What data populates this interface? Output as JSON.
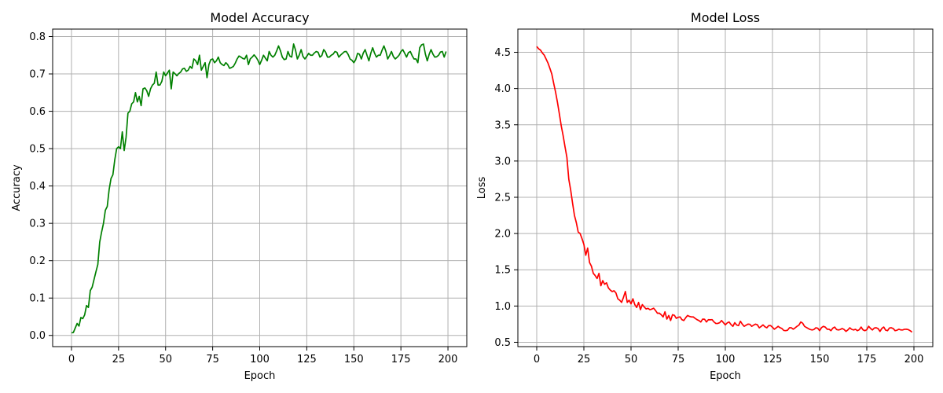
{
  "figure": {
    "background": "#ffffff",
    "grid_color": "#b0b0b0"
  },
  "chart_data": [
    {
      "type": "line",
      "title": "Model Accuracy",
      "xlabel": "Epoch",
      "ylabel": "Accuracy",
      "xlim": [
        -10,
        210
      ],
      "ylim": [
        -0.03,
        0.82
      ],
      "xticks": [
        0,
        25,
        50,
        75,
        100,
        125,
        150,
        175,
        200
      ],
      "yticks": [
        0.0,
        0.1,
        0.2,
        0.3,
        0.4,
        0.5,
        0.6,
        0.7,
        0.8
      ],
      "ytick_labels": [
        "0.0",
        "0.1",
        "0.2",
        "0.3",
        "0.4",
        "0.5",
        "0.6",
        "0.7",
        "0.8"
      ],
      "grid": true,
      "color": "#008000",
      "anchors": [
        [
          0,
          0.007
        ],
        [
          2,
          0.02
        ],
        [
          3,
          0.032
        ],
        [
          4,
          0.025
        ],
        [
          5,
          0.048
        ],
        [
          6,
          0.045
        ],
        [
          7,
          0.055
        ],
        [
          8,
          0.08
        ],
        [
          9,
          0.075
        ],
        [
          10,
          0.12
        ],
        [
          12,
          0.15
        ],
        [
          14,
          0.19
        ],
        [
          15,
          0.25
        ],
        [
          17,
          0.3
        ],
        [
          18,
          0.335
        ],
        [
          19,
          0.345
        ],
        [
          20,
          0.39
        ],
        [
          21,
          0.42
        ],
        [
          22,
          0.43
        ],
        [
          23,
          0.47
        ],
        [
          24,
          0.5
        ],
        [
          25,
          0.505
        ],
        [
          26,
          0.5
        ],
        [
          27,
          0.545
        ],
        [
          28,
          0.495
        ],
        [
          29,
          0.53
        ],
        [
          30,
          0.595
        ],
        [
          31,
          0.6
        ],
        [
          32,
          0.62
        ],
        [
          33,
          0.625
        ],
        [
          34,
          0.65
        ],
        [
          35,
          0.625
        ],
        [
          36,
          0.64
        ],
        [
          37,
          0.615
        ],
        [
          38,
          0.66
        ],
        [
          40,
          0.655
        ],
        [
          41,
          0.64
        ],
        [
          42,
          0.66
        ],
        [
          43,
          0.67
        ],
        [
          44,
          0.675
        ],
        [
          45,
          0.705
        ],
        [
          46,
          0.67
        ],
        [
          48,
          0.68
        ],
        [
          49,
          0.705
        ],
        [
          50,
          0.695
        ],
        [
          52,
          0.71
        ],
        [
          53,
          0.66
        ],
        [
          54,
          0.705
        ],
        [
          56,
          0.695
        ],
        [
          58,
          0.705
        ],
        [
          60,
          0.715
        ],
        [
          62,
          0.71
        ],
        [
          63,
          0.72
        ],
        [
          64,
          0.715
        ],
        [
          65,
          0.74
        ],
        [
          67,
          0.725
        ],
        [
          68,
          0.75
        ],
        [
          69,
          0.71
        ],
        [
          70,
          0.72
        ],
        [
          71,
          0.73
        ],
        [
          72,
          0.69
        ],
        [
          73,
          0.725
        ],
        [
          75,
          0.74
        ],
        [
          76,
          0.73
        ],
        [
          77,
          0.735
        ],
        [
          78,
          0.745
        ],
        [
          79,
          0.73
        ],
        [
          80,
          0.725
        ],
        [
          82,
          0.73
        ],
        [
          84,
          0.715
        ],
        [
          86,
          0.72
        ],
        [
          88,
          0.74
        ],
        [
          90,
          0.745
        ],
        [
          92,
          0.74
        ],
        [
          93,
          0.75
        ],
        [
          94,
          0.725
        ],
        [
          96,
          0.745
        ],
        [
          98,
          0.745
        ],
        [
          100,
          0.725
        ],
        [
          102,
          0.75
        ],
        [
          104,
          0.735
        ],
        [
          105,
          0.76
        ],
        [
          107,
          0.745
        ],
        [
          108,
          0.75
        ],
        [
          110,
          0.775
        ],
        [
          112,
          0.745
        ],
        [
          114,
          0.74
        ],
        [
          115,
          0.76
        ],
        [
          117,
          0.745
        ],
        [
          118,
          0.78
        ],
        [
          120,
          0.74
        ],
        [
          122,
          0.765
        ],
        [
          124,
          0.74
        ],
        [
          126,
          0.755
        ],
        [
          128,
          0.75
        ],
        [
          130,
          0.76
        ],
        [
          132,
          0.745
        ],
        [
          134,
          0.765
        ],
        [
          136,
          0.745
        ],
        [
          138,
          0.75
        ],
        [
          140,
          0.76
        ],
        [
          142,
          0.745
        ],
        [
          144,
          0.755
        ],
        [
          146,
          0.76
        ],
        [
          148,
          0.74
        ],
        [
          150,
          0.73
        ],
        [
          152,
          0.755
        ],
        [
          154,
          0.74
        ],
        [
          156,
          0.765
        ],
        [
          158,
          0.735
        ],
        [
          160,
          0.77
        ],
        [
          162,
          0.745
        ],
        [
          164,
          0.75
        ],
        [
          166,
          0.775
        ],
        [
          168,
          0.74
        ],
        [
          170,
          0.76
        ],
        [
          172,
          0.74
        ],
        [
          174,
          0.75
        ],
        [
          176,
          0.765
        ],
        [
          178,
          0.745
        ],
        [
          180,
          0.76
        ],
        [
          182,
          0.74
        ],
        [
          184,
          0.73
        ],
        [
          185,
          0.77
        ],
        [
          187,
          0.78
        ],
        [
          189,
          0.735
        ],
        [
          191,
          0.765
        ],
        [
          193,
          0.745
        ],
        [
          195,
          0.75
        ],
        [
          197,
          0.76
        ],
        [
          198,
          0.745
        ],
        [
          199,
          0.76
        ]
      ]
    },
    {
      "type": "line",
      "title": "Model Loss",
      "xlabel": "Epoch",
      "ylabel": "Loss",
      "xlim": [
        -10,
        210
      ],
      "ylim": [
        0.44,
        4.82
      ],
      "xticks": [
        0,
        25,
        50,
        75,
        100,
        125,
        150,
        175,
        200
      ],
      "yticks": [
        0.5,
        1.0,
        1.5,
        2.0,
        2.5,
        3.0,
        3.5,
        4.0,
        4.5
      ],
      "ytick_labels": [
        "0.5",
        "1.0",
        "1.5",
        "2.0",
        "2.5",
        "3.0",
        "3.5",
        "4.0",
        "4.5"
      ],
      "grid": true,
      "color": "#ff0000",
      "anchors": [
        [
          0,
          4.58
        ],
        [
          2,
          4.53
        ],
        [
          3,
          4.49
        ],
        [
          4,
          4.46
        ],
        [
          6,
          4.35
        ],
        [
          8,
          4.2
        ],
        [
          10,
          3.95
        ],
        [
          12,
          3.65
        ],
        [
          14,
          3.35
        ],
        [
          16,
          3.05
        ],
        [
          17,
          2.75
        ],
        [
          18,
          2.6
        ],
        [
          19,
          2.42
        ],
        [
          20,
          2.25
        ],
        [
          21,
          2.15
        ],
        [
          22,
          2.02
        ],
        [
          23,
          2.0
        ],
        [
          24,
          1.93
        ],
        [
          25,
          1.85
        ],
        [
          26,
          1.7
        ],
        [
          27,
          1.8
        ],
        [
          28,
          1.6
        ],
        [
          29,
          1.55
        ],
        [
          30,
          1.45
        ],
        [
          31,
          1.42
        ],
        [
          32,
          1.38
        ],
        [
          33,
          1.45
        ],
        [
          34,
          1.28
        ],
        [
          35,
          1.35
        ],
        [
          36,
          1.3
        ],
        [
          37,
          1.32
        ],
        [
          38,
          1.25
        ],
        [
          39,
          1.22
        ],
        [
          40,
          1.2
        ],
        [
          41,
          1.21
        ],
        [
          42,
          1.18
        ],
        [
          43,
          1.1
        ],
        [
          44,
          1.08
        ],
        [
          45,
          1.05
        ],
        [
          46,
          1.12
        ],
        [
          47,
          1.2
        ],
        [
          48,
          1.05
        ],
        [
          49,
          1.08
        ],
        [
          50,
          1.03
        ],
        [
          51,
          1.1
        ],
        [
          52,
          1.02
        ],
        [
          53,
          0.98
        ],
        [
          54,
          1.05
        ],
        [
          55,
          0.95
        ],
        [
          56,
          1.02
        ],
        [
          58,
          0.96
        ],
        [
          60,
          0.95
        ],
        [
          62,
          0.97
        ],
        [
          64,
          0.9
        ],
        [
          66,
          0.88
        ],
        [
          67,
          0.85
        ],
        [
          68,
          0.92
        ],
        [
          69,
          0.82
        ],
        [
          70,
          0.87
        ],
        [
          71,
          0.8
        ],
        [
          72,
          0.88
        ],
        [
          74,
          0.83
        ],
        [
          76,
          0.85
        ],
        [
          78,
          0.8
        ],
        [
          80,
          0.87
        ],
        [
          82,
          0.85
        ],
        [
          84,
          0.83
        ],
        [
          86,
          0.8
        ],
        [
          87,
          0.78
        ],
        [
          88,
          0.82
        ],
        [
          90,
          0.78
        ],
        [
          92,
          0.81
        ],
        [
          94,
          0.78
        ],
        [
          96,
          0.76
        ],
        [
          98,
          0.8
        ],
        [
          100,
          0.74
        ],
        [
          102,
          0.78
        ],
        [
          104,
          0.72
        ],
        [
          105,
          0.77
        ],
        [
          107,
          0.73
        ],
        [
          108,
          0.79
        ],
        [
          110,
          0.72
        ],
        [
          112,
          0.75
        ],
        [
          114,
          0.72
        ],
        [
          116,
          0.75
        ],
        [
          118,
          0.7
        ],
        [
          120,
          0.74
        ],
        [
          122,
          0.7
        ],
        [
          124,
          0.73
        ],
        [
          126,
          0.68
        ],
        [
          128,
          0.72
        ],
        [
          130,
          0.69
        ],
        [
          132,
          0.66
        ],
        [
          134,
          0.7
        ],
        [
          136,
          0.68
        ],
        [
          138,
          0.72
        ],
        [
          140,
          0.78
        ],
        [
          142,
          0.72
        ],
        [
          144,
          0.69
        ],
        [
          146,
          0.67
        ],
        [
          148,
          0.7
        ],
        [
          150,
          0.66
        ],
        [
          152,
          0.72
        ],
        [
          154,
          0.68
        ],
        [
          156,
          0.66
        ],
        [
          158,
          0.71
        ],
        [
          160,
          0.67
        ],
        [
          162,
          0.69
        ],
        [
          164,
          0.65
        ],
        [
          166,
          0.7
        ],
        [
          168,
          0.67
        ],
        [
          170,
          0.66
        ],
        [
          172,
          0.71
        ],
        [
          174,
          0.66
        ],
        [
          176,
          0.72
        ],
        [
          178,
          0.67
        ],
        [
          180,
          0.7
        ],
        [
          182,
          0.65
        ],
        [
          184,
          0.71
        ],
        [
          186,
          0.66
        ],
        [
          188,
          0.7
        ],
        [
          190,
          0.66
        ],
        [
          192,
          0.68
        ],
        [
          194,
          0.67
        ],
        [
          196,
          0.68
        ],
        [
          198,
          0.66
        ],
        [
          199,
          0.64
        ]
      ]
    }
  ]
}
